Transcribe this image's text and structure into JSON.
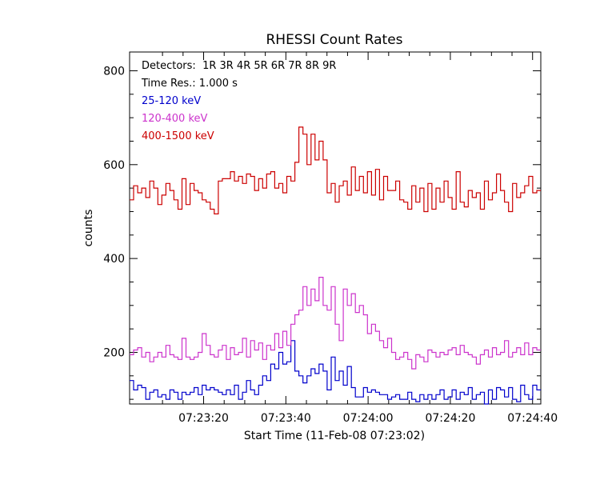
{
  "chart_data": {
    "type": "line",
    "title": "RHESSI Count Rates",
    "xlabel": "Start Time (11-Feb-08 07:23:02)",
    "ylabel": "counts",
    "x_tick_labels": [
      "07:23:20",
      "07:23:40",
      "07:24:00",
      "07:24:20",
      "07:24:40"
    ],
    "x_tick_seconds": [
      20,
      40,
      60,
      80,
      100
    ],
    "y_ticks": [
      200,
      400,
      600,
      800
    ],
    "xlim_seconds": [
      2,
      102
    ],
    "ylim": [
      90,
      840
    ],
    "grid": false,
    "annotations": [
      "Detectors:  1R 3R 4R 5R 6R 7R 8R 9R",
      "Time Res.: 1.000 s"
    ],
    "series": [
      {
        "name": "25-120 keV",
        "color": "#0000cc",
        "values": [
          140,
          120,
          130,
          125,
          100,
          115,
          120,
          105,
          110,
          100,
          120,
          115,
          100,
          115,
          110,
          115,
          125,
          110,
          130,
          120,
          125,
          120,
          115,
          110,
          120,
          110,
          130,
          100,
          115,
          140,
          120,
          110,
          130,
          150,
          140,
          175,
          165,
          200,
          175,
          180,
          225,
          160,
          150,
          135,
          150,
          165,
          155,
          175,
          160,
          120,
          190,
          140,
          160,
          130,
          170,
          125,
          105,
          105,
          125,
          115,
          120,
          115,
          110,
          110,
          100,
          105,
          110,
          100,
          100,
          115,
          100,
          95,
          110,
          100,
          110,
          100,
          110,
          120,
          100,
          105,
          120,
          100,
          115,
          110,
          125,
          100,
          110,
          115,
          90,
          120,
          100,
          125,
          120,
          105,
          125,
          100,
          95,
          130,
          110,
          100,
          130,
          120
        ]
      },
      {
        "name": "120-400 keV",
        "color": "#cc33cc",
        "values": [
          195,
          205,
          210,
          190,
          200,
          180,
          190,
          200,
          190,
          215,
          195,
          190,
          185,
          230,
          190,
          185,
          190,
          200,
          240,
          215,
          195,
          190,
          205,
          215,
          185,
          210,
          195,
          200,
          230,
          190,
          225,
          205,
          220,
          185,
          215,
          205,
          240,
          210,
          245,
          215,
          260,
          280,
          290,
          340,
          300,
          335,
          310,
          360,
          300,
          290,
          340,
          260,
          225,
          335,
          300,
          325,
          285,
          300,
          280,
          240,
          260,
          245,
          225,
          210,
          230,
          200,
          185,
          190,
          200,
          185,
          165,
          195,
          190,
          180,
          205,
          200,
          190,
          200,
          195,
          205,
          210,
          195,
          215,
          200,
          195,
          190,
          175,
          195,
          205,
          190,
          210,
          195,
          200,
          225,
          190,
          200,
          210,
          195,
          220,
          195,
          210,
          205
        ]
      },
      {
        "name": "400-1500 keV",
        "color": "#cc0000",
        "values": [
          525,
          555,
          540,
          550,
          530,
          565,
          550,
          515,
          535,
          560,
          545,
          525,
          505,
          570,
          515,
          560,
          545,
          540,
          525,
          520,
          505,
          495,
          565,
          570,
          570,
          585,
          565,
          575,
          560,
          580,
          575,
          545,
          570,
          550,
          580,
          585,
          550,
          560,
          540,
          575,
          565,
          605,
          680,
          665,
          600,
          665,
          610,
          650,
          610,
          540,
          560,
          520,
          555,
          565,
          535,
          595,
          545,
          575,
          540,
          585,
          535,
          590,
          525,
          575,
          545,
          545,
          565,
          525,
          520,
          505,
          555,
          520,
          550,
          500,
          560,
          505,
          550,
          520,
          565,
          530,
          505,
          585,
          520,
          510,
          545,
          530,
          540,
          505,
          565,
          525,
          540,
          580,
          545,
          520,
          500,
          560,
          530,
          540,
          555,
          575,
          540,
          545
        ]
      }
    ]
  }
}
